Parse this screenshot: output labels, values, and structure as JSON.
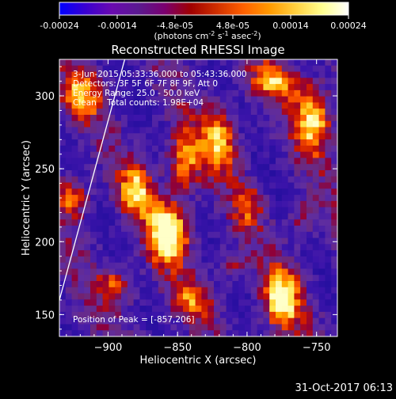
{
  "colorbar": {
    "ticks": [
      "-0.00024",
      "-0.00014",
      "-4.8e-05",
      "4.8e-05",
      "0.00014",
      "0.00024"
    ],
    "unit_label": "(photons cm",
    "unit_sup1": "-2",
    "unit_mid": " s",
    "unit_sup2": "-1",
    "unit_end": " asec",
    "unit_sup3": "-2",
    "unit_close": ")",
    "colors": [
      "#0000ff",
      "#3a00d0",
      "#6a0ab0",
      "#5a1a90",
      "#7a0070",
      "#a00000",
      "#d03000",
      "#ff6000",
      "#ff9a00",
      "#ffd040",
      "#ffff90",
      "#ffffff"
    ]
  },
  "chart_data": {
    "type": "heatmap",
    "title": "Reconstructed RHESSI Image",
    "xlabel": "Heliocentric X (arcsec)",
    "ylabel": "Heliocentric Y (arcsec)",
    "xlim": [
      -935,
      -735
    ],
    "ylim": [
      135,
      325
    ],
    "x_ticks": [
      -900,
      -850,
      -800,
      -750
    ],
    "y_ticks": [
      150,
      200,
      250,
      300
    ],
    "x_tick_labels": [
      "−900",
      "−850",
      "−800",
      "−750"
    ],
    "y_tick_labels": [
      "150",
      "200",
      "250",
      "300"
    ],
    "value_range": [
      -0.00024,
      0.00024
    ],
    "annotations": [
      "3-Jun-2015 05:33:36.000 to 05:43:36.000",
      "Detectors: 3F 5F 6F 7F 8F 9F, Att 0",
      "Energy Range: 25.0 - 50.0 keV",
      "Clean    Total counts: 1.98E+04",
      "Position of Peak = [-857,206]"
    ],
    "peak": [
      -857,
      206
    ],
    "hotspots": [
      {
        "x": -857,
        "y": 206,
        "v": 1.0,
        "sx": 10,
        "sy": 14
      },
      {
        "x": -880,
        "y": 235,
        "v": 0.7,
        "sx": 8,
        "sy": 12
      },
      {
        "x": -845,
        "y": 255,
        "v": 0.65,
        "sx": 9,
        "sy": 16
      },
      {
        "x": -820,
        "y": 270,
        "v": 0.7,
        "sx": 8,
        "sy": 14
      },
      {
        "x": -752,
        "y": 285,
        "v": 0.8,
        "sx": 9,
        "sy": 16
      },
      {
        "x": -780,
        "y": 310,
        "v": 0.6,
        "sx": 12,
        "sy": 8
      },
      {
        "x": -775,
        "y": 160,
        "v": 0.85,
        "sx": 9,
        "sy": 14
      },
      {
        "x": -920,
        "y": 300,
        "v": 0.6,
        "sx": 10,
        "sy": 12
      },
      {
        "x": -925,
        "y": 230,
        "v": 0.55,
        "sx": 8,
        "sy": 10
      },
      {
        "x": -895,
        "y": 170,
        "v": 0.5,
        "sx": 10,
        "sy": 8
      },
      {
        "x": -800,
        "y": 225,
        "v": 0.45,
        "sx": 7,
        "sy": 10
      },
      {
        "x": -760,
        "y": 215,
        "v": 0.4,
        "sx": 6,
        "sy": 9
      },
      {
        "x": -840,
        "y": 160,
        "v": 0.45,
        "sx": 12,
        "sy": 8
      },
      {
        "x": -810,
        "y": 185,
        "v": 0.35,
        "sx": 7,
        "sy": 7
      }
    ],
    "limb_line": [
      [
        -935,
        160
      ],
      [
        -888,
        325
      ]
    ]
  },
  "footer": {
    "date": "31-Oct-2017 06:13"
  }
}
